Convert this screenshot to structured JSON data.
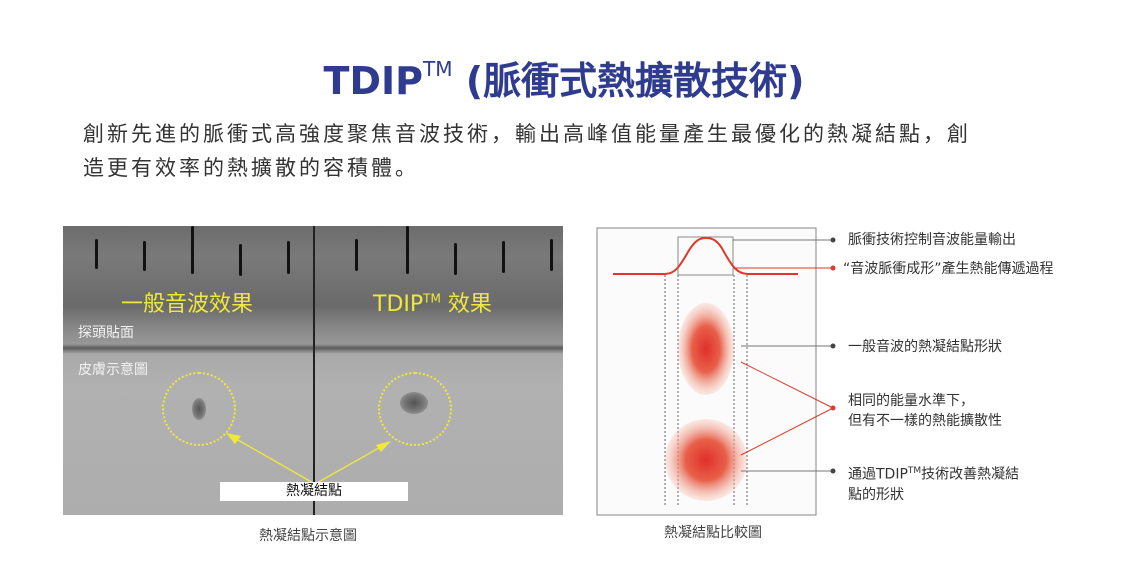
{
  "header": {
    "title_main": "TDIP",
    "title_sup": "TM",
    "title_rest": " (脈衝式熱擴散技術)"
  },
  "intro": {
    "line1": "創新先進的脈衝式高強度聚焦音波技術，輸出高峰值能量產生最優化的熱凝結點，創",
    "line2": "造更有效率的熱擴散的容積體。"
  },
  "photo": {
    "left_title": "一般音波效果",
    "right_title_main": "TDIP",
    "right_title_sup": "TM",
    "right_title_rest": " 效果",
    "probe_label": "探頭貼面",
    "skin_label": "皮膚示意圖",
    "spot_label": "熱凝結點",
    "caption": "熱凝結點示意圖",
    "highlight_color": "#f0e93a"
  },
  "diagram": {
    "caption": "熱凝結點比較圖",
    "accent_color": "#e0392b",
    "labels": [
      {
        "text": "脈衝技術控制音波能量輸出"
      },
      {
        "text": "“音波脈衝成形”產生熱能傳遞過程"
      },
      {
        "text": "一般音波的熱凝結點形狀"
      },
      {
        "line1": "相同的能量水準下，",
        "line2": "但有不一樣的熱能擴散性"
      },
      {
        "pre": "通過TDIP",
        "sup": "TM",
        "post": "技術改善熱凝結",
        "line2": "點的形狀"
      }
    ]
  }
}
